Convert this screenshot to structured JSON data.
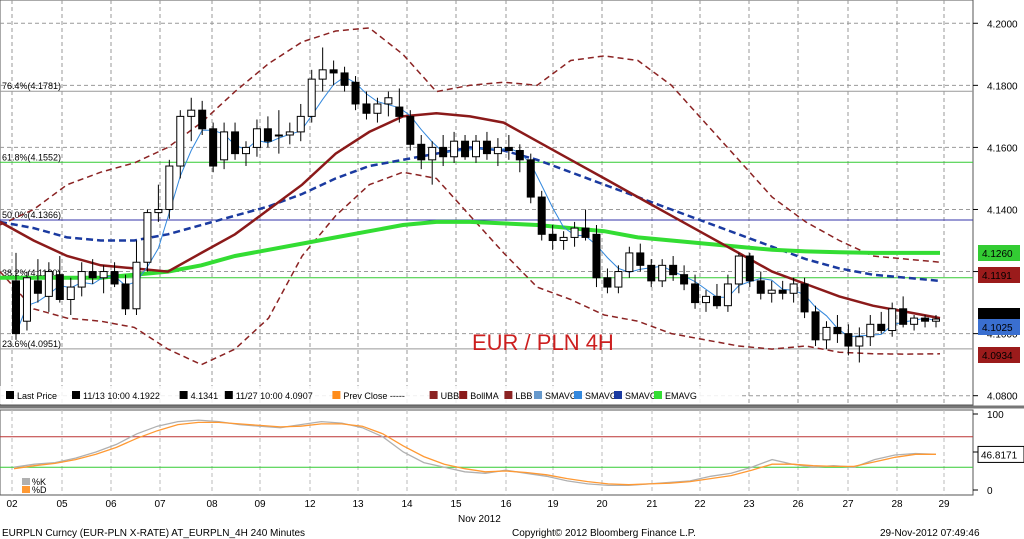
{
  "chart_data": {
    "type": "candlestick",
    "title": "EUR / PLN 4H",
    "footer": {
      "left": "EURPLN Curncy (EUR-PLN X-RATE) AT_EURPLN_4H  240 Minutes",
      "center": "Copyright© 2012 Bloomberg Finance L.P.",
      "right": "29-Nov-2012 07:49:46"
    },
    "x_month_label": "Nov 2012",
    "x_ticks": [
      "02",
      "05",
      "06",
      "07",
      "08",
      "09",
      "12",
      "13",
      "14",
      "15",
      "16",
      "19",
      "20",
      "21",
      "22",
      "23",
      "26",
      "27",
      "28",
      "29"
    ],
    "y_ticks": [
      "4.0800",
      "4.1000",
      "4.1200",
      "4.1400",
      "4.1600",
      "4.1800",
      "4.2000"
    ],
    "ylim": [
      4.077,
      4.2075
    ],
    "fib_levels": [
      {
        "label": "76.4%(4.1781)",
        "value": 4.1781,
        "color": "#999999"
      },
      {
        "label": "61.8%(4.1552)",
        "value": 4.1552,
        "color": "#33cc33"
      },
      {
        "label": "50.0%(4.1366)",
        "value": 4.1366,
        "color": "#3333aa"
      },
      {
        "label": "38.2%(4.1180)",
        "value": 4.118,
        "color": "#33cc33"
      },
      {
        "label": "23.6%(4.0951)",
        "value": 4.0951,
        "color": "#999999"
      }
    ],
    "price_tags": [
      {
        "text": "4.1260",
        "value": 4.126,
        "bg": "#33cc33",
        "fg": "#000000"
      },
      {
        "text": "4.1191",
        "value": 4.1191,
        "bg": "#9b1b1b",
        "fg": "#ffffff"
      },
      {
        "text": "4.1047",
        "value": 4.1047,
        "bg": "#000000",
        "fg": "#ffffff"
      },
      {
        "text": "4.1025",
        "value": 4.1025,
        "bg": "#3a6fd0",
        "fg": "#ffffff"
      },
      {
        "text": "4.0934",
        "value": 4.0934,
        "bg": "#9b1b1b",
        "fg": "#ffffff"
      }
    ],
    "legend": [
      {
        "label": "Last Price",
        "color": "#000000"
      },
      {
        "label": "11/13 10:00 4.1922",
        "color": "#000000"
      },
      {
        "label": "4.1341",
        "color": "#000000"
      },
      {
        "label": "11/27 10:00 4.0907",
        "color": "#000000"
      },
      {
        "label": "Prev Close -----",
        "color": "#ff8c1a"
      },
      {
        "label": "UBB",
        "color": "#8b2323"
      },
      {
        "label": "BollMA",
        "color": "#8b1a1a"
      },
      {
        "label": "LBB",
        "color": "#8b2323"
      },
      {
        "label": "SMAVG",
        "color": "#6699cc"
      },
      {
        "label": "SMAVG",
        "color": "#3388dd"
      },
      {
        "label": "SMAVG",
        "color": "#1a3aa0"
      },
      {
        "label": "EMAVG",
        "color": "#33dd33"
      }
    ],
    "oscillator": {
      "y_ticks": [
        "0",
        "50",
        "100"
      ],
      "value_tag": "46.8171",
      "value": 46.8171,
      "overbought": 70,
      "oversold": 30,
      "legend": [
        "%K",
        "%D"
      ],
      "k": [
        30,
        34,
        36,
        42,
        50,
        60,
        74,
        84,
        90,
        92,
        90,
        86,
        84,
        82,
        86,
        90,
        88,
        82,
        70,
        50,
        36,
        30,
        24,
        22,
        26,
        22,
        18,
        12,
        8,
        6,
        6,
        8,
        10,
        12,
        18,
        22,
        30,
        40,
        34,
        30,
        32,
        30,
        40,
        46,
        48,
        47
      ],
      "d": [
        28,
        32,
        35,
        40,
        47,
        56,
        68,
        78,
        86,
        89,
        89,
        87,
        85,
        83,
        84,
        87,
        87,
        84,
        74,
        58,
        44,
        34,
        28,
        24,
        25,
        23,
        20,
        15,
        11,
        8,
        7,
        8,
        9,
        11,
        15,
        19,
        26,
        34,
        34,
        32,
        31,
        31,
        37,
        43,
        47,
        47
      ]
    },
    "candles": [
      {
        "o": 4.117,
        "h": 4.126,
        "l": 4.098,
        "c": 4.1
      },
      {
        "o": 4.104,
        "h": 4.12,
        "l": 4.101,
        "c": 4.118
      },
      {
        "o": 4.117,
        "h": 4.124,
        "l": 4.11,
        "c": 4.113
      },
      {
        "o": 4.112,
        "h": 4.123,
        "l": 4.107,
        "c": 4.12
      },
      {
        "o": 4.119,
        "h": 4.125,
        "l": 4.11,
        "c": 4.111
      },
      {
        "o": 4.111,
        "h": 4.118,
        "l": 4.106,
        "c": 4.115
      },
      {
        "o": 4.115,
        "h": 4.123,
        "l": 4.112,
        "c": 4.12
      },
      {
        "o": 4.12,
        "h": 4.124,
        "l": 4.116,
        "c": 4.118
      },
      {
        "o": 4.118,
        "h": 4.122,
        "l": 4.113,
        "c": 4.12
      },
      {
        "o": 4.12,
        "h": 4.123,
        "l": 4.115,
        "c": 4.116
      },
      {
        "o": 4.116,
        "h": 4.119,
        "l": 4.106,
        "c": 4.108
      },
      {
        "o": 4.108,
        "h": 4.13,
        "l": 4.106,
        "c": 4.123
      },
      {
        "o": 4.123,
        "h": 4.14,
        "l": 4.12,
        "c": 4.139
      },
      {
        "o": 4.139,
        "h": 4.148,
        "l": 4.136,
        "c": 4.14
      },
      {
        "o": 4.14,
        "h": 4.156,
        "l": 4.137,
        "c": 4.154
      },
      {
        "o": 4.154,
        "h": 4.172,
        "l": 4.15,
        "c": 4.17
      },
      {
        "o": 4.17,
        "h": 4.176,
        "l": 4.162,
        "c": 4.172
      },
      {
        "o": 4.172,
        "h": 4.175,
        "l": 4.164,
        "c": 4.166
      },
      {
        "o": 4.166,
        "h": 4.168,
        "l": 4.152,
        "c": 4.154
      },
      {
        "o": 4.156,
        "h": 4.168,
        "l": 4.153,
        "c": 4.165
      },
      {
        "o": 4.165,
        "h": 4.168,
        "l": 4.156,
        "c": 4.158
      },
      {
        "o": 4.158,
        "h": 4.162,
        "l": 4.154,
        "c": 4.16
      },
      {
        "o": 4.16,
        "h": 4.169,
        "l": 4.157,
        "c": 4.166
      },
      {
        "o": 4.166,
        "h": 4.17,
        "l": 4.16,
        "c": 4.162
      },
      {
        "o": 4.164,
        "h": 4.172,
        "l": 4.158,
        "c": 4.164
      },
      {
        "o": 4.164,
        "h": 4.168,
        "l": 4.161,
        "c": 4.165
      },
      {
        "o": 4.165,
        "h": 4.174,
        "l": 4.162,
        "c": 4.17
      },
      {
        "o": 4.17,
        "h": 4.185,
        "l": 4.168,
        "c": 4.182
      },
      {
        "o": 4.182,
        "h": 4.1922,
        "l": 4.178,
        "c": 4.185
      },
      {
        "o": 4.185,
        "h": 4.188,
        "l": 4.18,
        "c": 4.184
      },
      {
        "o": 4.184,
        "h": 4.186,
        "l": 4.178,
        "c": 4.18
      },
      {
        "o": 4.181,
        "h": 4.183,
        "l": 4.172,
        "c": 4.174
      },
      {
        "o": 4.174,
        "h": 4.178,
        "l": 4.169,
        "c": 4.171
      },
      {
        "o": 4.171,
        "h": 4.176,
        "l": 4.168,
        "c": 4.174
      },
      {
        "o": 4.174,
        "h": 4.178,
        "l": 4.17,
        "c": 4.176
      },
      {
        "o": 4.173,
        "h": 4.179,
        "l": 4.168,
        "c": 4.17
      },
      {
        "o": 4.17,
        "h": 4.172,
        "l": 4.159,
        "c": 4.161
      },
      {
        "o": 4.161,
        "h": 4.164,
        "l": 4.153,
        "c": 4.156
      },
      {
        "o": 4.156,
        "h": 4.162,
        "l": 4.148,
        "c": 4.16
      },
      {
        "o": 4.16,
        "h": 4.164,
        "l": 4.154,
        "c": 4.157
      },
      {
        "o": 4.157,
        "h": 4.165,
        "l": 4.155,
        "c": 4.162
      },
      {
        "o": 4.162,
        "h": 4.164,
        "l": 4.156,
        "c": 4.157
      },
      {
        "o": 4.157,
        "h": 4.164,
        "l": 4.155,
        "c": 4.162
      },
      {
        "o": 4.162,
        "h": 4.165,
        "l": 4.156,
        "c": 4.158
      },
      {
        "o": 4.158,
        "h": 4.163,
        "l": 4.154,
        "c": 4.16
      },
      {
        "o": 4.16,
        "h": 4.164,
        "l": 4.156,
        "c": 4.159
      },
      {
        "o": 4.159,
        "h": 4.161,
        "l": 4.152,
        "c": 4.156
      },
      {
        "o": 4.156,
        "h": 4.158,
        "l": 4.142,
        "c": 4.144
      },
      {
        "o": 4.144,
        "h": 4.146,
        "l": 4.13,
        "c": 4.132
      },
      {
        "o": 4.132,
        "h": 4.135,
        "l": 4.127,
        "c": 4.13
      },
      {
        "o": 4.13,
        "h": 4.133,
        "l": 4.127,
        "c": 4.131
      },
      {
        "o": 4.131,
        "h": 4.136,
        "l": 4.128,
        "c": 4.134
      },
      {
        "o": 4.134,
        "h": 4.14,
        "l": 4.13,
        "c": 4.131
      },
      {
        "o": 4.132,
        "h": 4.135,
        "l": 4.115,
        "c": 4.118
      },
      {
        "o": 4.118,
        "h": 4.121,
        "l": 4.113,
        "c": 4.115
      },
      {
        "o": 4.115,
        "h": 4.122,
        "l": 4.113,
        "c": 4.12
      },
      {
        "o": 4.12,
        "h": 4.128,
        "l": 4.118,
        "c": 4.126
      },
      {
        "o": 4.126,
        "h": 4.129,
        "l": 4.12,
        "c": 4.122
      },
      {
        "o": 4.122,
        "h": 4.124,
        "l": 4.115,
        "c": 4.117
      },
      {
        "o": 4.117,
        "h": 4.124,
        "l": 4.115,
        "c": 4.122
      },
      {
        "o": 4.122,
        "h": 4.125,
        "l": 4.117,
        "c": 4.119
      },
      {
        "o": 4.119,
        "h": 4.122,
        "l": 4.114,
        "c": 4.116
      },
      {
        "o": 4.116,
        "h": 4.119,
        "l": 4.108,
        "c": 4.11
      },
      {
        "o": 4.11,
        "h": 4.114,
        "l": 4.107,
        "c": 4.112
      },
      {
        "o": 4.112,
        "h": 4.116,
        "l": 4.108,
        "c": 4.109
      },
      {
        "o": 4.109,
        "h": 4.119,
        "l": 4.107,
        "c": 4.116
      },
      {
        "o": 4.116,
        "h": 4.126,
        "l": 4.113,
        "c": 4.125
      },
      {
        "o": 4.125,
        "h": 4.126,
        "l": 4.115,
        "c": 4.117
      },
      {
        "o": 4.117,
        "h": 4.12,
        "l": 4.111,
        "c": 4.113
      },
      {
        "o": 4.113,
        "h": 4.117,
        "l": 4.11,
        "c": 4.114
      },
      {
        "o": 4.114,
        "h": 4.117,
        "l": 4.111,
        "c": 4.113
      },
      {
        "o": 4.113,
        "h": 4.118,
        "l": 4.11,
        "c": 4.116
      },
      {
        "o": 4.116,
        "h": 4.118,
        "l": 4.105,
        "c": 4.107
      },
      {
        "o": 4.107,
        "h": 4.109,
        "l": 4.096,
        "c": 4.098
      },
      {
        "o": 4.098,
        "h": 4.104,
        "l": 4.095,
        "c": 4.102
      },
      {
        "o": 4.102,
        "h": 4.106,
        "l": 4.097,
        "c": 4.1
      },
      {
        "o": 4.1,
        "h": 4.103,
        "l": 4.093,
        "c": 4.096
      },
      {
        "o": 4.096,
        "h": 4.102,
        "l": 4.0907,
        "c": 4.099
      },
      {
        "o": 4.099,
        "h": 4.106,
        "l": 4.096,
        "c": 4.103
      },
      {
        "o": 4.103,
        "h": 4.107,
        "l": 4.1,
        "c": 4.101
      },
      {
        "o": 4.101,
        "h": 4.11,
        "l": 4.099,
        "c": 4.108
      },
      {
        "o": 4.108,
        "h": 4.112,
        "l": 4.102,
        "c": 4.103
      },
      {
        "o": 4.103,
        "h": 4.106,
        "l": 4.101,
        "c": 4.105
      },
      {
        "o": 4.105,
        "h": 4.106,
        "l": 4.102,
        "c": 4.104
      },
      {
        "o": 4.104,
        "h": 4.106,
        "l": 4.102,
        "c": 4.1047
      }
    ],
    "overlays": {
      "ubb": [
        4.135,
        4.14,
        4.148,
        4.152,
        4.155,
        4.16,
        4.168,
        4.178,
        4.187,
        4.194,
        4.1975,
        4.1985,
        4.19,
        4.178,
        4.18,
        4.181,
        4.18,
        4.188,
        4.1895,
        4.188,
        4.18,
        4.168,
        4.156,
        4.144,
        4.136,
        4.13,
        4.125,
        4.124,
        4.123
      ],
      "lbb": [
        4.12,
        4.108,
        4.105,
        4.104,
        4.102,
        4.095,
        4.09,
        4.095,
        4.105,
        4.125,
        4.138,
        4.148,
        4.152,
        4.15,
        4.138,
        4.126,
        4.115,
        4.111,
        4.106,
        4.104,
        4.1,
        4.098,
        4.096,
        4.095,
        4.096,
        4.094,
        4.0935,
        4.0934,
        4.0935
      ],
      "bollma": [
        4.136,
        4.13,
        4.125,
        4.122,
        4.121,
        4.12,
        4.126,
        4.132,
        4.14,
        4.148,
        4.158,
        4.165,
        4.17,
        4.171,
        4.17,
        4.168,
        4.162,
        4.156,
        4.15,
        4.144,
        4.138,
        4.132,
        4.126,
        4.12,
        4.116,
        4.112,
        4.109,
        4.107,
        4.105
      ],
      "sma_mid": [
        4.136,
        4.134,
        4.131,
        4.13,
        4.13,
        4.132,
        4.135,
        4.138,
        4.141,
        4.145,
        4.15,
        4.154,
        4.156,
        4.158,
        4.16,
        4.159,
        4.156,
        4.152,
        4.148,
        4.144,
        4.14,
        4.136,
        4.132,
        4.128,
        4.124,
        4.121,
        4.119,
        4.118,
        4.117
      ],
      "ema": [
        4.118,
        4.118,
        4.118,
        4.118,
        4.119,
        4.12,
        4.122,
        4.125,
        4.127,
        4.129,
        4.131,
        4.133,
        4.135,
        4.136,
        4.136,
        4.1355,
        4.135,
        4.134,
        4.133,
        4.131,
        4.13,
        4.129,
        4.128,
        4.127,
        4.1265,
        4.1262,
        4.126,
        4.126,
        4.126
      ]
    }
  }
}
